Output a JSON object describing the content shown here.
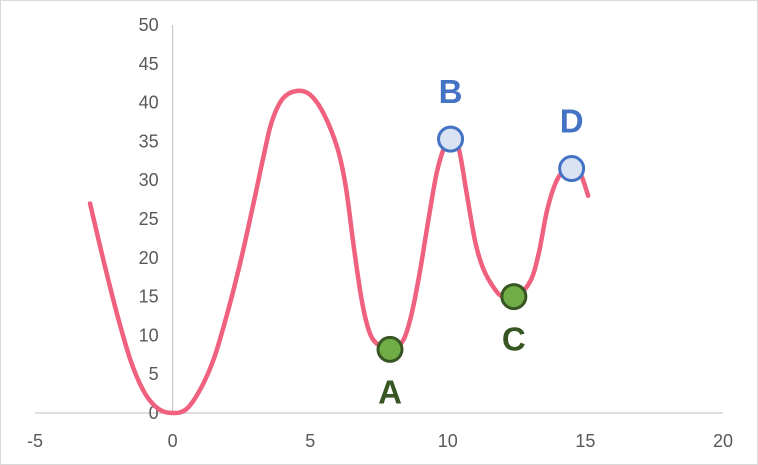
{
  "chart_data": {
    "type": "line",
    "title": "",
    "xlabel": "",
    "ylabel": "",
    "xlim": [
      -5,
      20
    ],
    "ylim": [
      0,
      50
    ],
    "x_ticks": [
      -5,
      0,
      5,
      10,
      15,
      20
    ],
    "y_ticks": [
      0,
      5,
      10,
      15,
      20,
      25,
      30,
      35,
      40,
      45,
      50
    ],
    "grid": false,
    "legend": "none",
    "series": [
      {
        "line_color": "#f0607f",
        "points": [
          [
            -3,
            27
          ],
          [
            -2.5,
            19.5
          ],
          [
            -2,
            12.5
          ],
          [
            -1.5,
            6.5
          ],
          [
            -1,
            2.5
          ],
          [
            -0.5,
            0.5
          ],
          [
            0,
            0
          ],
          [
            0.5,
            0.5
          ],
          [
            1,
            3
          ],
          [
            1.5,
            7
          ],
          [
            2,
            13
          ],
          [
            2.5,
            20
          ],
          [
            3,
            28
          ],
          [
            3.3,
            33
          ],
          [
            3.6,
            37.5
          ],
          [
            4,
            40.5
          ],
          [
            4.5,
            41.5
          ],
          [
            5,
            41
          ],
          [
            5.5,
            38.5
          ],
          [
            6,
            34
          ],
          [
            6.3,
            29
          ],
          [
            6.6,
            21
          ],
          [
            6.9,
            14
          ],
          [
            7.2,
            10
          ],
          [
            7.6,
            8.5
          ],
          [
            8,
            8.2
          ],
          [
            8.4,
            9.5
          ],
          [
            8.7,
            13
          ],
          [
            9,
            18.5
          ],
          [
            9.3,
            25
          ],
          [
            9.6,
            31
          ],
          [
            9.9,
            34.5
          ],
          [
            10.1,
            35.3
          ],
          [
            10.4,
            34
          ],
          [
            10.7,
            28
          ],
          [
            11,
            22
          ],
          [
            11.3,
            18.5
          ],
          [
            11.7,
            16
          ],
          [
            12,
            15
          ],
          [
            12.5,
            15
          ],
          [
            13,
            17
          ],
          [
            13.3,
            20.5
          ],
          [
            13.6,
            26
          ],
          [
            13.9,
            29.5
          ],
          [
            14.2,
            31.2
          ],
          [
            14.5,
            31.5
          ],
          [
            14.8,
            31
          ],
          [
            15.1,
            28
          ]
        ]
      }
    ],
    "highlight_points": [
      {
        "label": "A",
        "x": 7.9,
        "y": 8.2,
        "fill": "#70ad47",
        "stroke": "#375623",
        "label_color": "#375623",
        "label_pos": "below"
      },
      {
        "label": "B",
        "x": 10.1,
        "y": 35.3,
        "fill": "#dae3f3",
        "stroke": "#4472c4",
        "label_color": "#4472c4",
        "label_pos": "above"
      },
      {
        "label": "C",
        "x": 12.4,
        "y": 15.0,
        "fill": "#70ad47",
        "stroke": "#375623",
        "label_color": "#375623",
        "label_pos": "below"
      },
      {
        "label": "D",
        "x": 14.5,
        "y": 31.5,
        "fill": "#dae3f3",
        "stroke": "#4472c4",
        "label_color": "#4472c4",
        "label_pos": "above"
      }
    ]
  }
}
